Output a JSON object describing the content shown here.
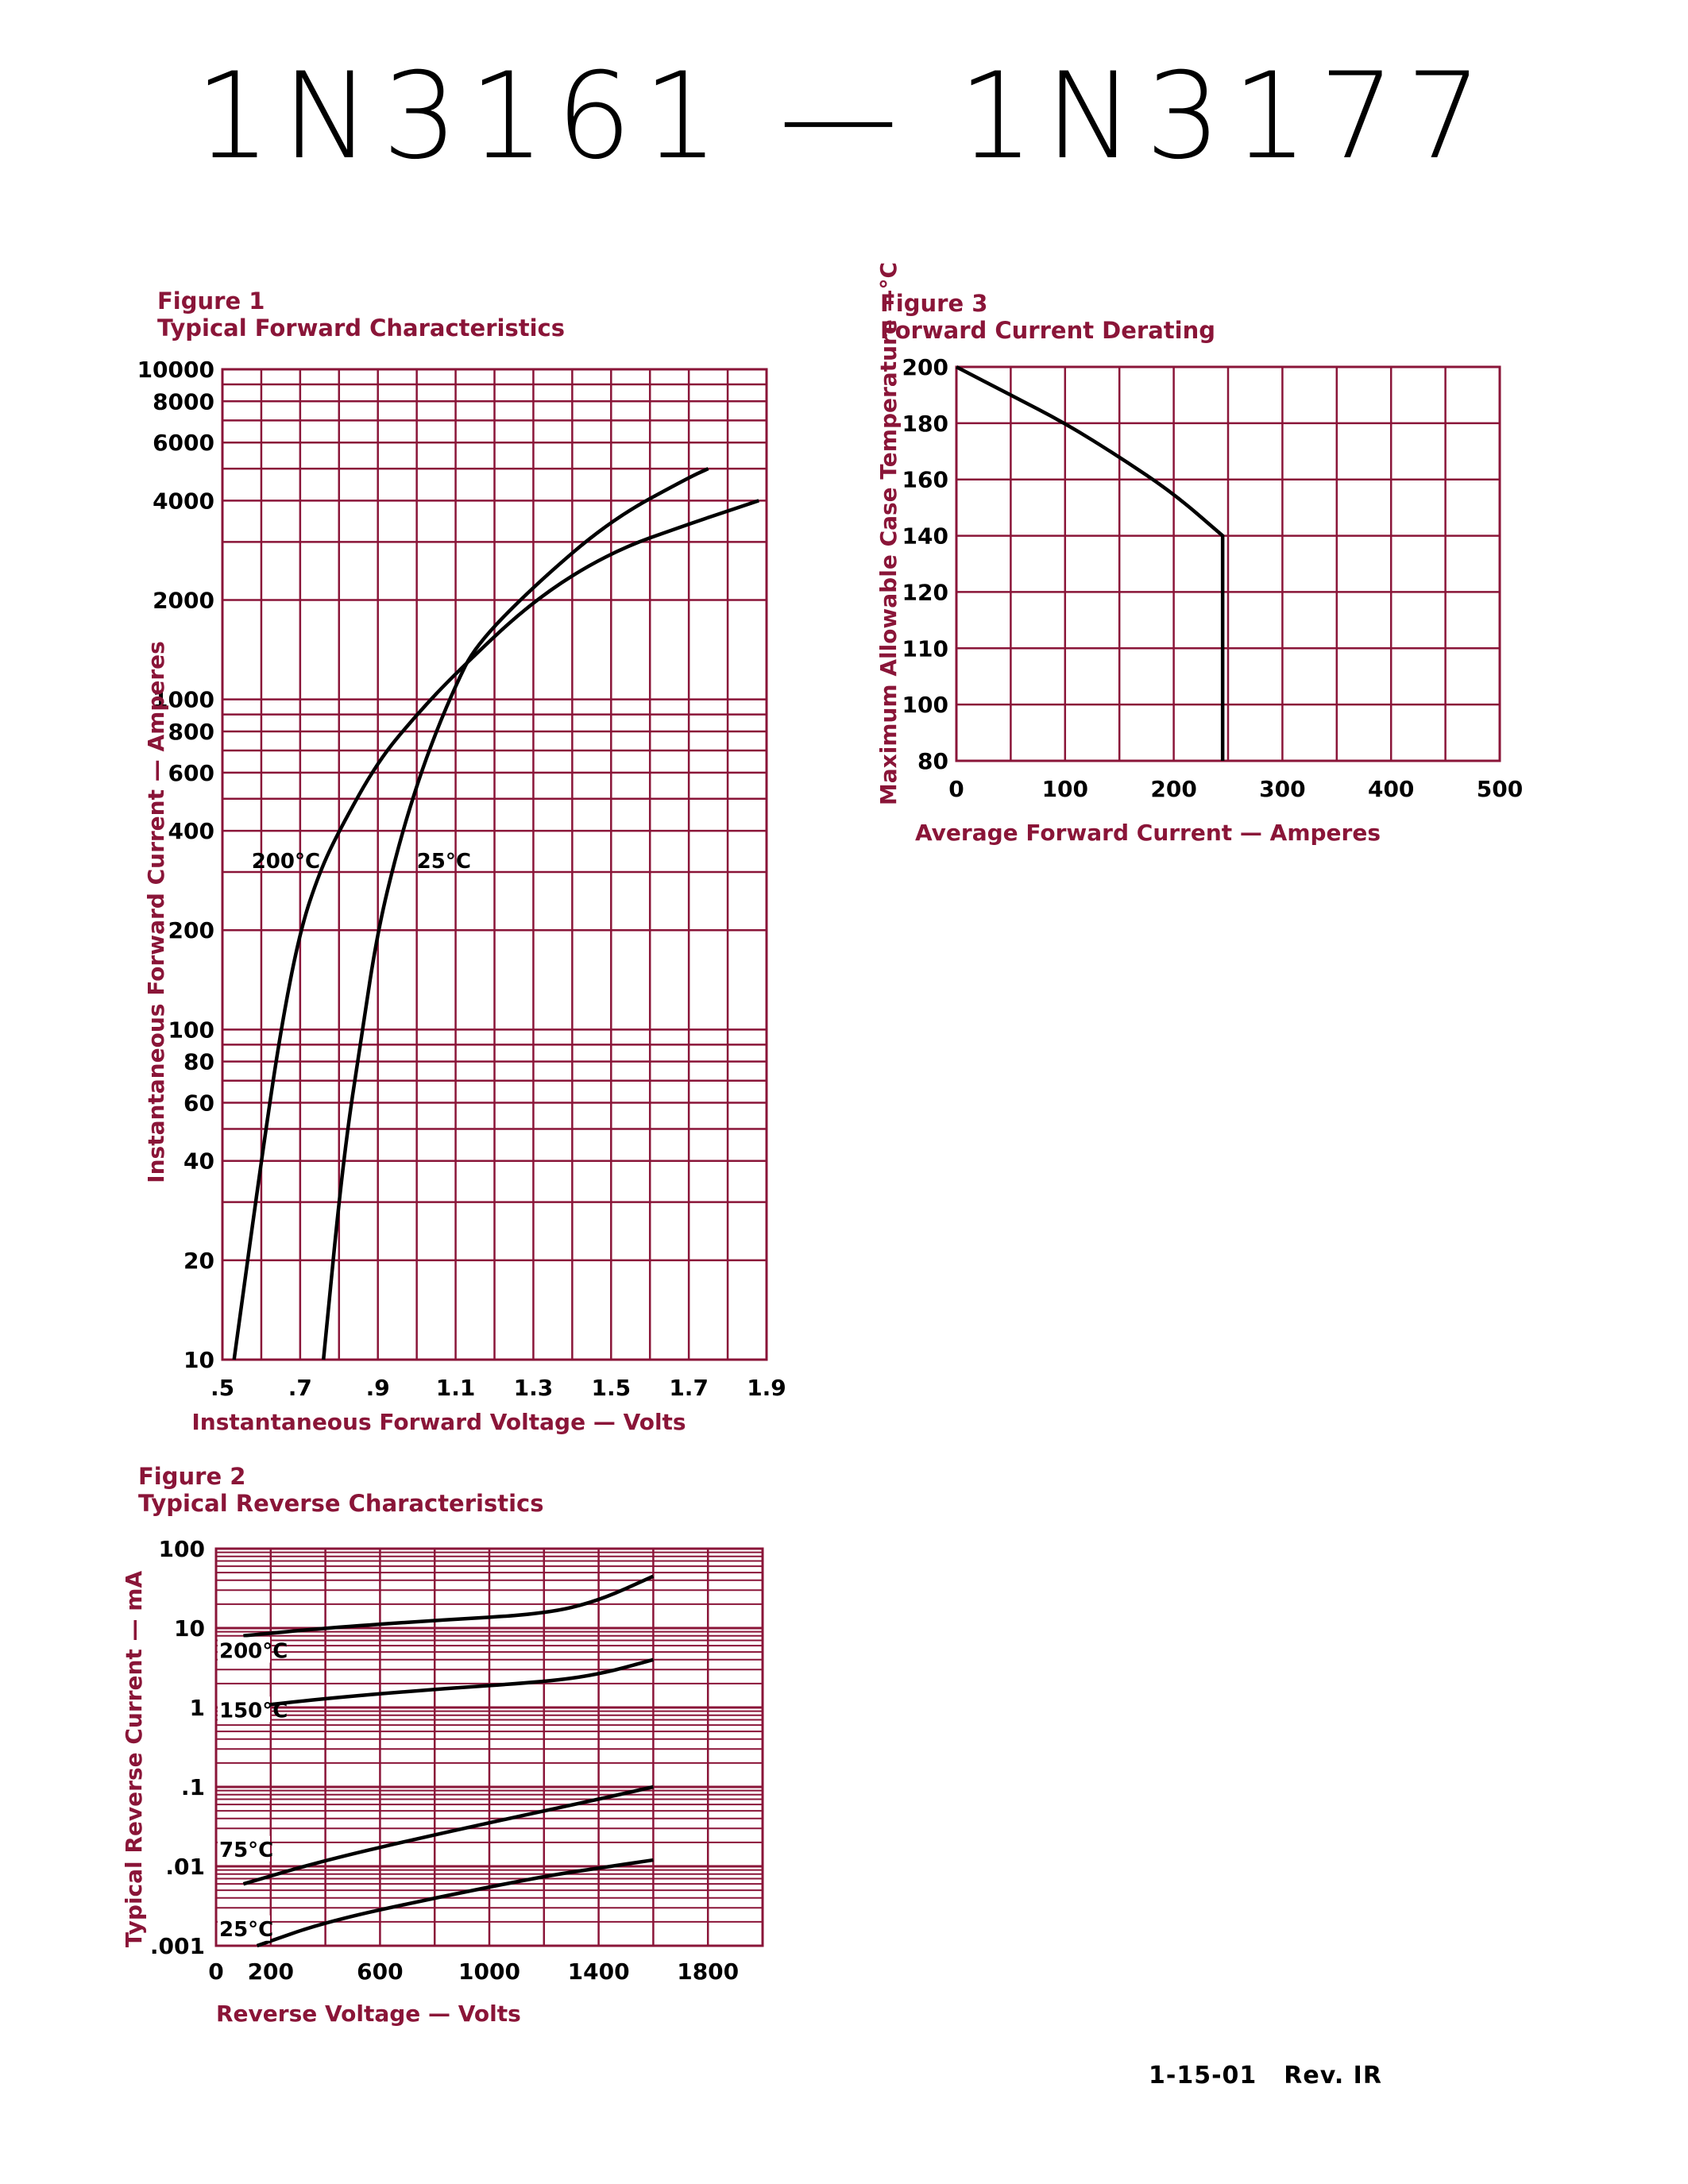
{
  "page": {
    "title": "1N3161 — 1N3177",
    "date": "1-15-01",
    "revision": "Rev. IR"
  },
  "colors": {
    "grid": "#8a1538",
    "curve": "#000000",
    "text": "#000000"
  },
  "figures": {
    "fig1": {
      "number": "Figure 1",
      "title": "Typical Forward Characteristics"
    },
    "fig2": {
      "number": "Figure 2",
      "title": "Typical Reverse Characteristics"
    },
    "fig3": {
      "number": "Figure 3",
      "title": "Forward Current Derating"
    }
  },
  "chart_data": [
    {
      "id": "fig1",
      "type": "line",
      "title": "Typical Forward Characteristics",
      "xlabel": "Instantaneous Forward Voltage — Volts",
      "ylabel": "Instantaneous Forward Current — Amperes",
      "xscale": "linear",
      "yscale": "log",
      "xlim": [
        0.5,
        1.9
      ],
      "ylim": [
        10,
        10000
      ],
      "xticks": [
        0.5,
        0.7,
        0.9,
        1.1,
        1.3,
        1.5,
        1.7,
        1.9
      ],
      "xtick_labels": [
        ".5",
        ".7",
        ".9",
        "1.1",
        "1.3",
        "1.5",
        "1.7",
        "1.9"
      ],
      "yticks": [
        10,
        20,
        40,
        60,
        80,
        100,
        200,
        400,
        600,
        800,
        1000,
        2000,
        4000,
        6000,
        8000,
        10000
      ],
      "ytick_labels": [
        "10",
        "20",
        "40",
        "60",
        "80",
        "100",
        "200",
        "400",
        "600",
        "800",
        "1000",
        "2000",
        "4000",
        "6000",
        "8000",
        "10000"
      ],
      "grid": true,
      "series": [
        {
          "name": "200°C",
          "x": [
            0.53,
            0.6,
            0.65,
            0.7,
            0.75,
            0.8,
            0.9,
            1.0,
            1.1,
            1.3,
            1.5,
            1.7,
            1.88
          ],
          "y": [
            10,
            40,
            100,
            200,
            300,
            400,
            650,
            900,
            1200,
            2000,
            2800,
            3400,
            4000
          ]
        },
        {
          "name": "25°C",
          "x": [
            0.76,
            0.81,
            0.86,
            0.9,
            0.95,
            1.0,
            1.05,
            1.1,
            1.15,
            1.3,
            1.5,
            1.7,
            1.75
          ],
          "y": [
            10,
            40,
            100,
            200,
            350,
            550,
            800,
            1100,
            1450,
            2200,
            3500,
            4700,
            5000
          ]
        }
      ]
    },
    {
      "id": "fig2",
      "type": "line",
      "title": "Typical Reverse Characteristics",
      "xlabel": "Reverse Voltage — Volts",
      "ylabel": "Typical Reverse Current — mA",
      "xscale": "linear",
      "yscale": "log",
      "xlim": [
        0,
        2000
      ],
      "ylim": [
        0.001,
        100
      ],
      "xticks": [
        0,
        200,
        600,
        1000,
        1400,
        1800
      ],
      "xtick_labels": [
        "0",
        "200",
        "600",
        "1000",
        "1400",
        "1800"
      ],
      "yticks": [
        0.001,
        0.01,
        0.1,
        1,
        10,
        100
      ],
      "ytick_labels": [
        ".001",
        ".01",
        ".1",
        "1",
        "10",
        "100"
      ],
      "grid": true,
      "series": [
        {
          "name": "200°C",
          "x": [
            100,
            400,
            800,
            1200,
            1400,
            1600
          ],
          "y": [
            8,
            10,
            12.5,
            15,
            22,
            45
          ]
        },
        {
          "name": "150°C",
          "x": [
            100,
            400,
            800,
            1200,
            1400,
            1600
          ],
          "y": [
            1,
            1.3,
            1.7,
            2.1,
            2.6,
            4
          ]
        },
        {
          "name": "75°C",
          "x": [
            100,
            400,
            800,
            1200,
            1400,
            1600
          ],
          "y": [
            0.006,
            0.012,
            0.025,
            0.05,
            0.07,
            0.1
          ]
        },
        {
          "name": "25°C",
          "x": [
            150,
            400,
            800,
            1200,
            1400,
            1600
          ],
          "y": [
            0.001,
            0.002,
            0.004,
            0.0075,
            0.0095,
            0.012
          ]
        }
      ]
    },
    {
      "id": "fig3",
      "type": "line",
      "title": "Forward Current Derating",
      "xlabel": "Average Forward Current — Amperes",
      "ylabel": "Maximum Allowable Case Temperature —°C",
      "xscale": "linear",
      "yscale": "category",
      "xlim": [
        0,
        500
      ],
      "xticks": [
        0,
        100,
        200,
        300,
        400,
        500
      ],
      "xtick_labels": [
        "0",
        "100",
        "200",
        "300",
        "400",
        "500"
      ],
      "yticks": [
        80,
        100,
        110,
        120,
        140,
        160,
        180,
        200
      ],
      "ytick_labels": [
        "80",
        "100",
        "110",
        "120",
        "140",
        "160",
        "180",
        "200"
      ],
      "grid": true,
      "series": [
        {
          "name": "",
          "x": [
            0,
            50,
            100,
            150,
            200,
            245,
            245
          ],
          "y": [
            200,
            190,
            180,
            168,
            155,
            140,
            80
          ]
        }
      ]
    }
  ]
}
